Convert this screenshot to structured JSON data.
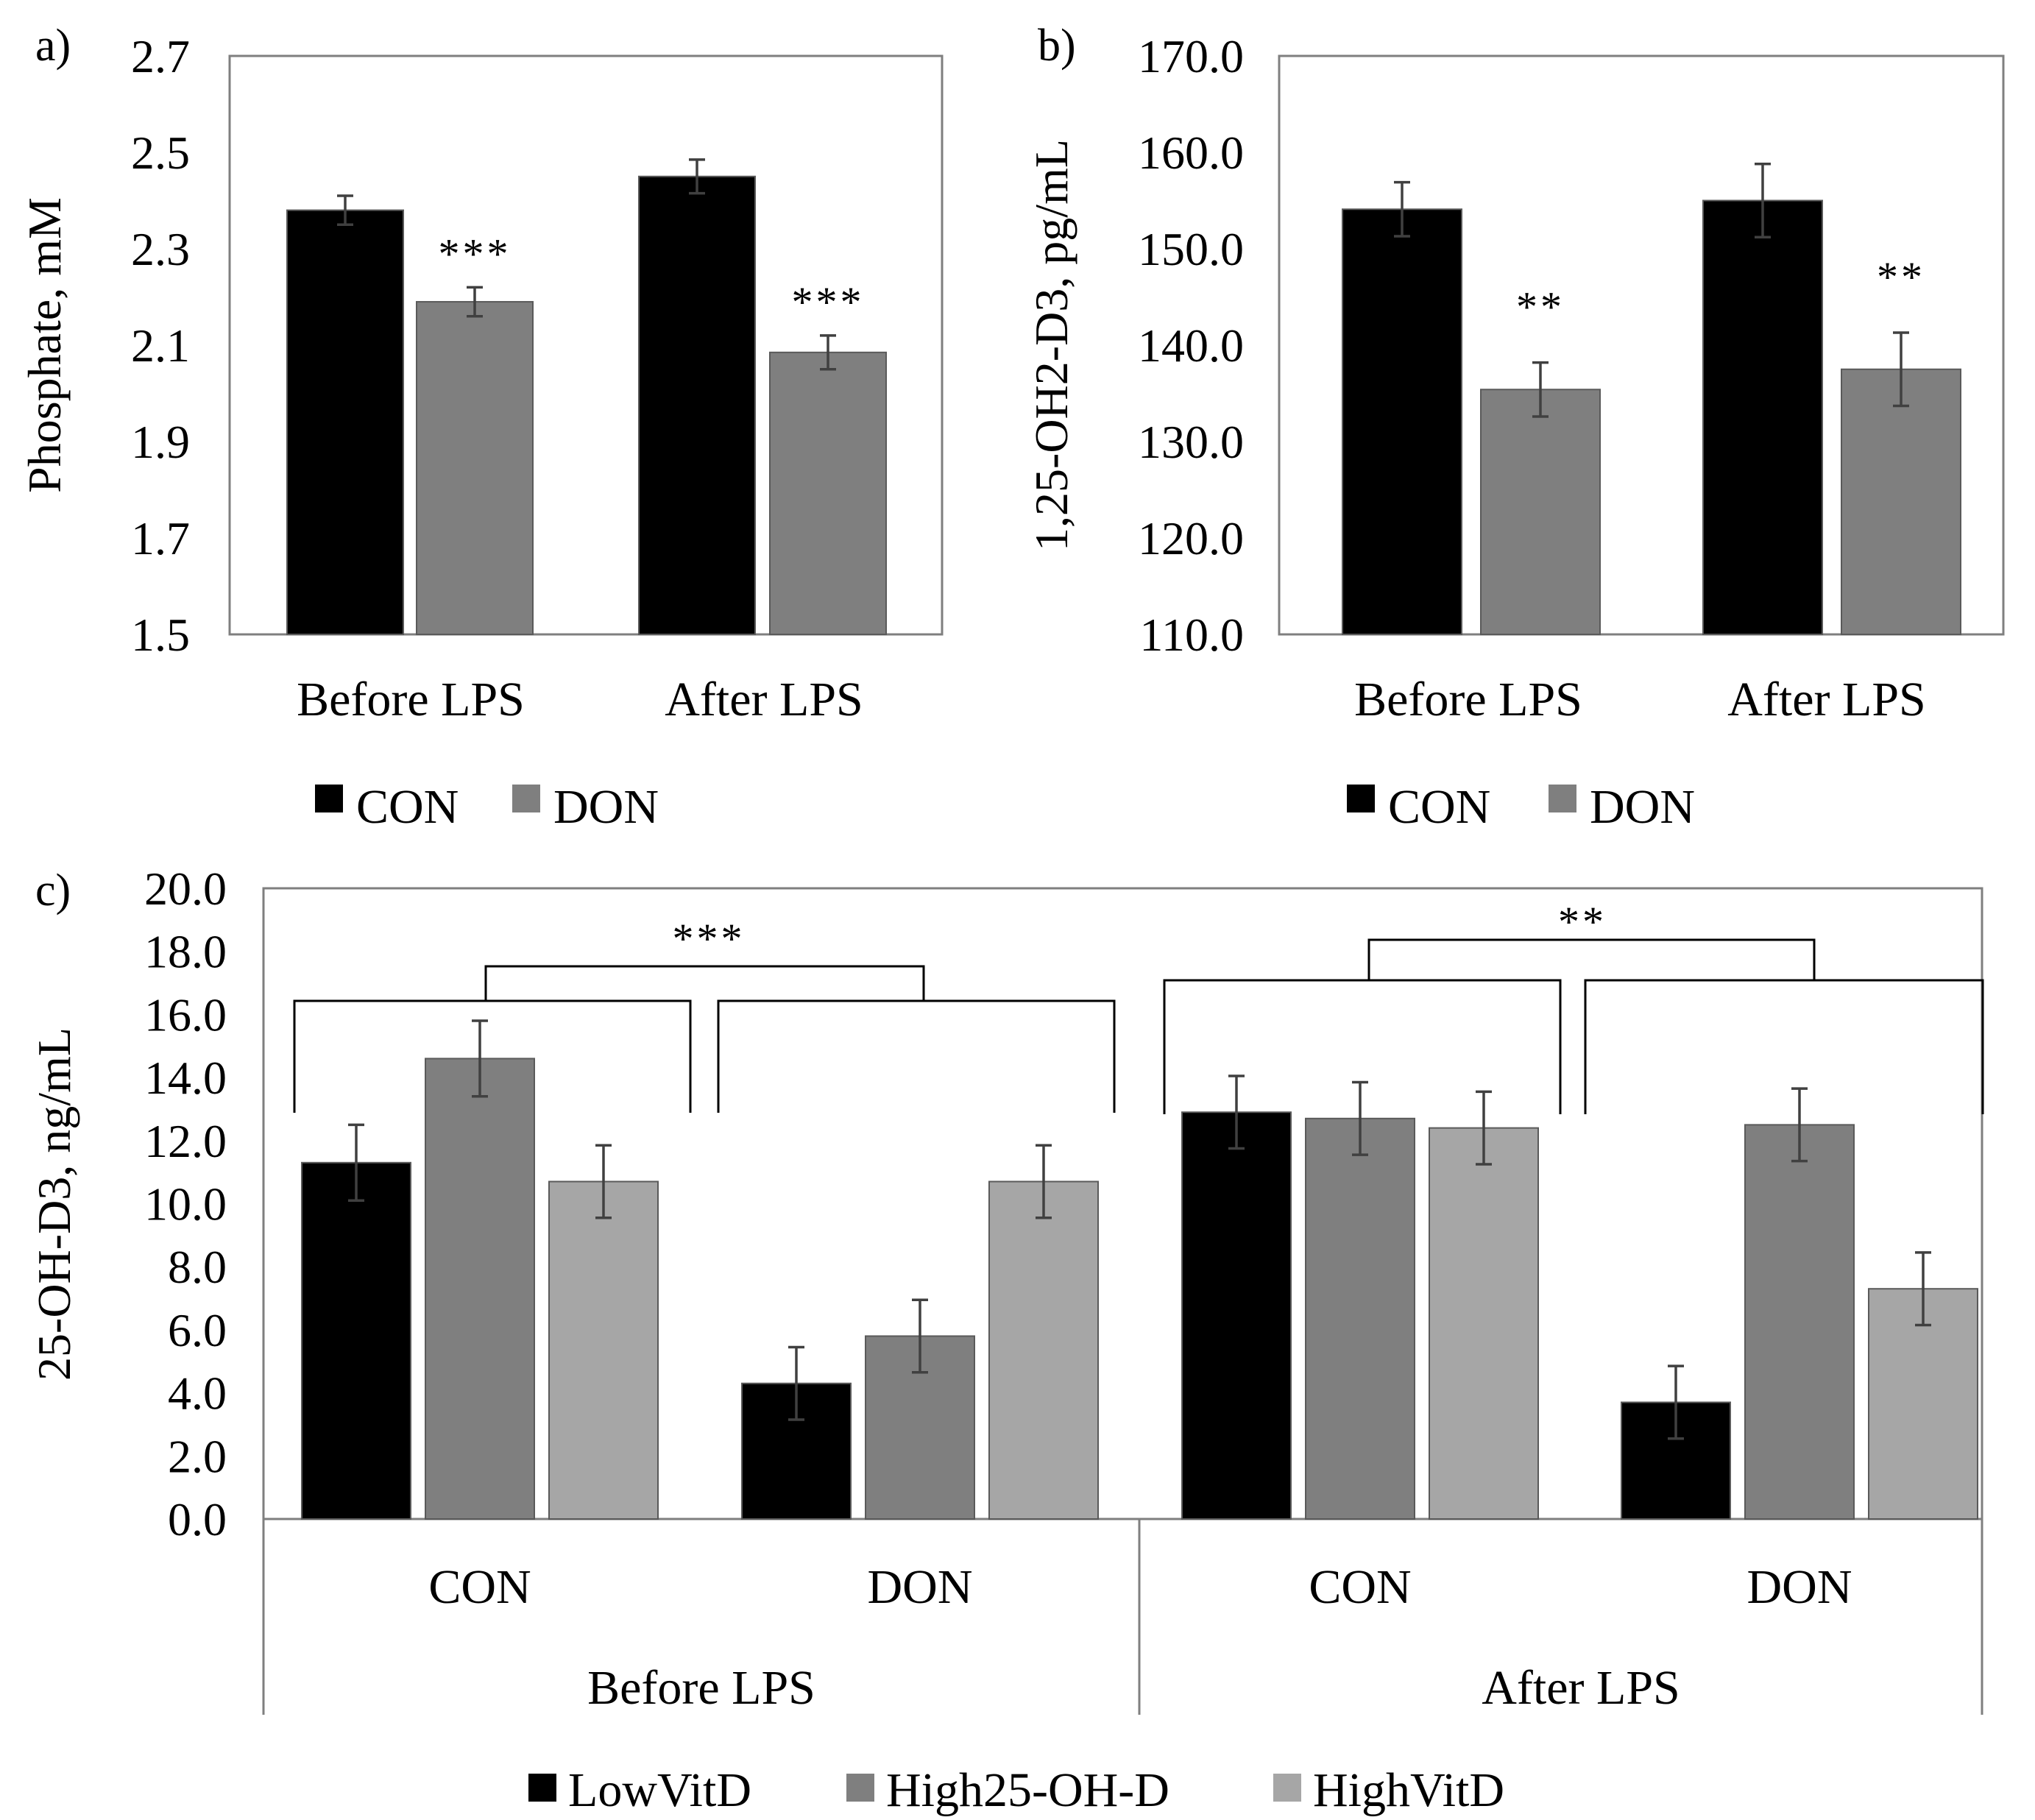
{
  "chart_data": [
    {
      "panel": "a)",
      "type": "bar",
      "ylabel": "Phosphate, mM",
      "ylim": [
        1.5,
        2.7
      ],
      "yticks": [
        "1.5",
        "1.7",
        "1.9",
        "2.1",
        "2.3",
        "2.5",
        "2.7"
      ],
      "categories": [
        "Before LPS",
        "After LPS"
      ],
      "series": [
        {
          "name": "CON",
          "color": "#000000",
          "values": [
            2.38,
            2.45
          ],
          "errors": [
            0.03,
            0.035
          ]
        },
        {
          "name": "DON",
          "color": "#7f7f7f",
          "values": [
            2.19,
            2.085
          ],
          "errors": [
            0.03,
            0.035
          ]
        }
      ],
      "annotations": [
        "***",
        "***"
      ],
      "legend": [
        "CON",
        "DON"
      ]
    },
    {
      "panel": "b)",
      "type": "bar",
      "ylabel": "1,25-OH2-D3, pg/mL",
      "ylim": [
        110,
        170
      ],
      "yticks": [
        "110.0",
        "120.0",
        "130.0",
        "140.0",
        "150.0",
        "160.0",
        "170.0"
      ],
      "categories": [
        "Before LPS",
        "After LPS"
      ],
      "series": [
        {
          "name": "CON",
          "color": "#000000",
          "values": [
            154.1,
            155.0
          ],
          "errors": [
            2.8,
            3.8
          ]
        },
        {
          "name": "DON",
          "color": "#7f7f7f",
          "values": [
            135.4,
            137.5
          ],
          "errors": [
            2.8,
            3.8
          ]
        }
      ],
      "annotations": [
        "**",
        "**"
      ],
      "legend": [
        "CON",
        "DON"
      ]
    },
    {
      "panel": "c)",
      "type": "bar",
      "ylabel": "25-OH-D3, ng/mL",
      "ylim": [
        0,
        20
      ],
      "yticks": [
        "0.0",
        "2.0",
        "4.0",
        "6.0",
        "8.0",
        "10.0",
        "12.0",
        "14.0",
        "16.0",
        "18.0",
        "20.0"
      ],
      "groups": [
        "CON",
        "DON",
        "CON",
        "DON"
      ],
      "periods": [
        "Before LPS",
        "After LPS"
      ],
      "series": [
        {
          "name": "LowVitD",
          "color": "#000000",
          "values": [
            11.3,
            4.3,
            12.9,
            3.7
          ],
          "errors": [
            1.2,
            1.15,
            1.15,
            1.15
          ]
        },
        {
          "name": "High25-OH-D",
          "color": "#7f7f7f",
          "values": [
            14.6,
            5.8,
            12.7,
            12.5
          ],
          "errors": [
            1.2,
            1.15,
            1.15,
            1.15
          ]
        },
        {
          "name": "HighVitD",
          "color": "#a6a6a6",
          "values": [
            10.7,
            10.7,
            12.4,
            7.3
          ],
          "errors": [
            1.15,
            1.15,
            1.15,
            1.15
          ]
        }
      ],
      "annotations": [
        "***",
        "**"
      ],
      "legend": [
        "LowVitD",
        "High25-OH-D",
        "HighVitD"
      ]
    }
  ]
}
